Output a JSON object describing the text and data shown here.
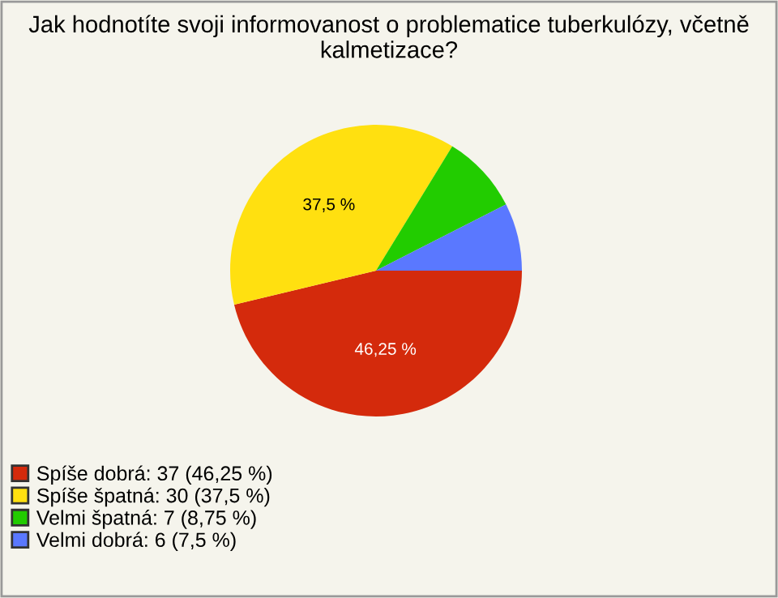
{
  "chart_data": {
    "type": "pie",
    "title": "Jak hodnotíte svoji informovanost o problematice tuberkulózy, včetně kalmetizace?",
    "categories": [
      "Spíše dobrá: 37 (46,25 %)",
      "Spíše špatná: 30 (37,5 %)",
      "Velmi špatná: 7 (8,75 %)",
      "Velmi dobrá: 6 (7,5 %)"
    ],
    "values": [
      46.25,
      37.5,
      8.75,
      7.5
    ],
    "colors": [
      "#d42a0c",
      "#ffe010",
      "#22cc00",
      "#5a78ff"
    ],
    "value_labels": [
      "46,25 %",
      "37,5 %",
      null,
      null
    ],
    "legend": "bottom left"
  }
}
